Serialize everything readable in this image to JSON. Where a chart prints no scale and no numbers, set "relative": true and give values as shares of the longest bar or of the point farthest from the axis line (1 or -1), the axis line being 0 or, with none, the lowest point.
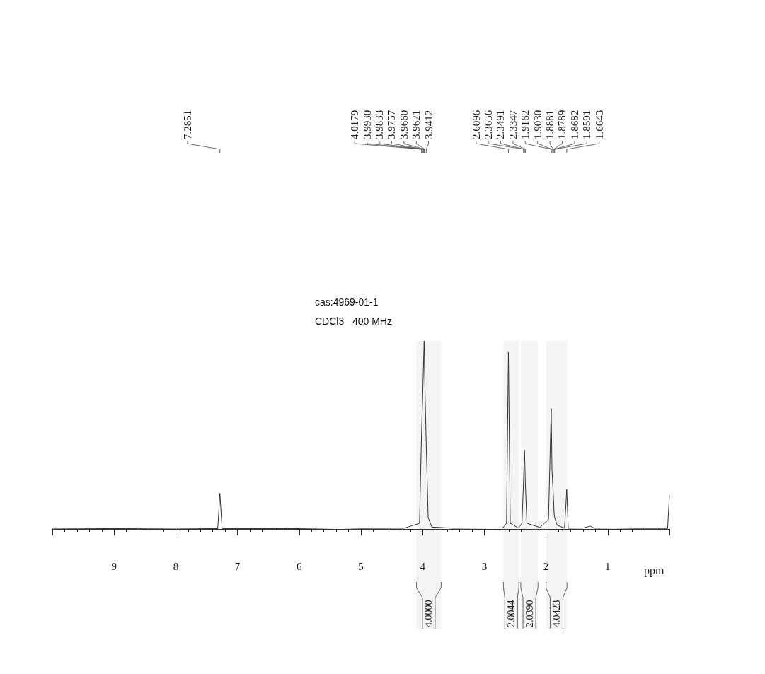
{
  "chart_data": {
    "type": "line",
    "relative": true,
    "color": "#333333",
    "xlabel": "ppm",
    "xlim": [
      10,
      0
    ],
    "xticks": [
      {
        "value": 10,
        "label": null
      },
      9,
      8,
      7,
      6,
      5,
      4,
      3,
      2,
      1,
      {
        "value": 0,
        "label": null
      }
    ],
    "x": [
      10,
      9,
      8,
      7.32,
      7.2851,
      7.25,
      6,
      5.35,
      5,
      4.3,
      4.05,
      4.0179,
      3.993,
      3.9757,
      3.962,
      3.9412,
      3.91,
      3.85,
      3.5,
      2.7,
      2.64,
      2.6096,
      2.58,
      2.45,
      2.39,
      2.3656,
      2.3491,
      2.3347,
      2.31,
      2.1,
      1.96,
      1.9162,
      1.903,
      1.8881,
      1.8789,
      1.8682,
      1.8591,
      1.82,
      1.7,
      1.6643,
      1.64,
      1.4,
      1.28,
      1.22,
      0.9,
      0.5,
      0.03,
      0
    ],
    "values": [
      0,
      0.002,
      0,
      0.002,
      0.19,
      0.002,
      0.002,
      0.006,
      0.003,
      0.004,
      0.03,
      0.5,
      0.78,
      1,
      0.74,
      0.45,
      0.06,
      0.01,
      0.004,
      0.006,
      0.03,
      0.94,
      0.03,
      0.005,
      0.03,
      0.24,
      0.42,
      0.24,
      0.03,
      0.008,
      0.05,
      0.64,
      0.31,
      0.22,
      0.16,
      0.08,
      0.06,
      0.02,
      0.004,
      0.21,
      0.004,
      0.005,
      0.015,
      0.004,
      0.005,
      0.003,
      0.003,
      0.18
    ],
    "marker": "none",
    "line_style": "solid",
    "grid": false,
    "annotations": [
      "cas:4969-01-1",
      "CDCl3   400 MHz",
      {
        "text": "7.2851",
        "x": 7.2851
      },
      {
        "text": "4.0179",
        "x": 4.0179
      },
      {
        "text": "3.9930",
        "x": 3.993
      },
      {
        "text": "3.9833",
        "x": 3.9833
      },
      {
        "text": "3.9757",
        "x": 3.9757
      },
      {
        "text": "3.9660",
        "x": 3.966
      },
      {
        "text": "3.9621",
        "x": 3.9621
      },
      {
        "text": "3.9412",
        "x": 3.9412
      },
      {
        "text": "2.6096",
        "x": 2.6096
      },
      {
        "text": "2.3656",
        "x": 2.3656
      },
      {
        "text": "2.3491",
        "x": 2.3491
      },
      {
        "text": "2.3347",
        "x": 2.3347
      },
      {
        "text": "1.9162",
        "x": 1.9162
      },
      {
        "text": "1.9030",
        "x": 1.903
      },
      {
        "text": "1.8881",
        "x": 1.8881
      },
      {
        "text": "1.8789",
        "x": 1.8789
      },
      {
        "text": "1.8682",
        "x": 1.8682
      },
      {
        "text": "1.8591",
        "x": 1.8591
      },
      {
        "text": "1.6643",
        "x": 1.6643
      }
    ],
    "bands": [
      {
        "axis": "x",
        "from": 4.1,
        "to": 3.7,
        "label": "4.0000"
      },
      {
        "axis": "x",
        "from": 2.69,
        "to": 2.44,
        "label": "2.0044"
      },
      {
        "axis": "x",
        "from": 2.41,
        "to": 2.13,
        "label": "2.0390"
      },
      {
        "axis": "x",
        "from": 2.0,
        "to": 1.66,
        "label": "4.0423"
      }
    ]
  }
}
